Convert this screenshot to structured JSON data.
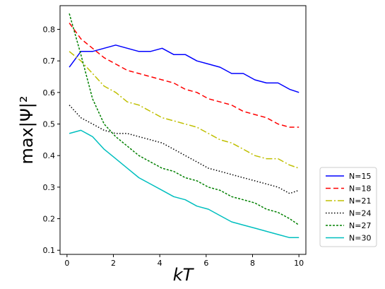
{
  "chart_data": {
    "type": "line",
    "title": "",
    "xlabel": "kT",
    "ylabel": "max|Ψ|²",
    "xlim": [
      -0.3,
      10.3
    ],
    "ylim": [
      0.087,
      0.875
    ],
    "xticks": [
      0,
      2,
      4,
      6,
      8,
      10
    ],
    "xtick_labels": [
      "0",
      "2",
      "4",
      "6",
      "8",
      "10"
    ],
    "yticks": [
      0.1,
      0.2,
      0.3,
      0.4,
      0.5,
      0.6,
      0.7,
      0.8
    ],
    "ytick_labels": [
      "0.1",
      "0.2",
      "0.3",
      "0.4",
      "0.5",
      "0.6",
      "0.7",
      "0.8"
    ],
    "grid": false,
    "legend_position": "outside-right",
    "x": [
      0.1,
      0.6,
      1.1,
      1.6,
      2.1,
      2.6,
      3.1,
      3.6,
      4.1,
      4.6,
      5.1,
      5.6,
      6.1,
      6.6,
      7.1,
      7.6,
      8.1,
      8.6,
      9.1,
      9.6,
      10.0
    ],
    "series": [
      {
        "name": "N=15",
        "color": "#0000ff",
        "dash": "solid",
        "values": [
          0.68,
          0.73,
          0.73,
          0.74,
          0.75,
          0.74,
          0.73,
          0.73,
          0.74,
          0.72,
          0.72,
          0.7,
          0.69,
          0.68,
          0.66,
          0.66,
          0.64,
          0.63,
          0.63,
          0.61,
          0.6
        ]
      },
      {
        "name": "N=18",
        "color": "#ff0000",
        "dash": "dashed",
        "values": [
          0.82,
          0.77,
          0.74,
          0.71,
          0.69,
          0.67,
          0.66,
          0.65,
          0.64,
          0.63,
          0.61,
          0.6,
          0.58,
          0.57,
          0.56,
          0.54,
          0.53,
          0.52,
          0.5,
          0.49,
          0.49
        ]
      },
      {
        "name": "N=21",
        "color": "#bfbf00",
        "dash": "dashdot",
        "values": [
          0.73,
          0.7,
          0.66,
          0.62,
          0.6,
          0.57,
          0.56,
          0.54,
          0.52,
          0.51,
          0.5,
          0.49,
          0.47,
          0.45,
          0.44,
          0.42,
          0.4,
          0.39,
          0.39,
          0.37,
          0.36
        ]
      },
      {
        "name": "N=24",
        "color": "#000000",
        "dash": "dotted",
        "values": [
          0.56,
          0.52,
          0.5,
          0.48,
          0.47,
          0.47,
          0.46,
          0.45,
          0.44,
          0.42,
          0.4,
          0.38,
          0.36,
          0.35,
          0.34,
          0.33,
          0.32,
          0.31,
          0.3,
          0.28,
          0.29
        ]
      },
      {
        "name": "N=27",
        "color": "#008000",
        "dash": "densedash",
        "values": [
          0.85,
          0.72,
          0.58,
          0.5,
          0.46,
          0.43,
          0.4,
          0.38,
          0.36,
          0.35,
          0.33,
          0.32,
          0.3,
          0.29,
          0.27,
          0.26,
          0.25,
          0.23,
          0.22,
          0.2,
          0.18
        ]
      },
      {
        "name": "N=30",
        "color": "#00bfbf",
        "dash": "solid",
        "values": [
          0.47,
          0.48,
          0.46,
          0.42,
          0.39,
          0.36,
          0.33,
          0.31,
          0.29,
          0.27,
          0.26,
          0.24,
          0.23,
          0.21,
          0.19,
          0.18,
          0.17,
          0.16,
          0.15,
          0.14,
          0.14
        ]
      }
    ]
  }
}
